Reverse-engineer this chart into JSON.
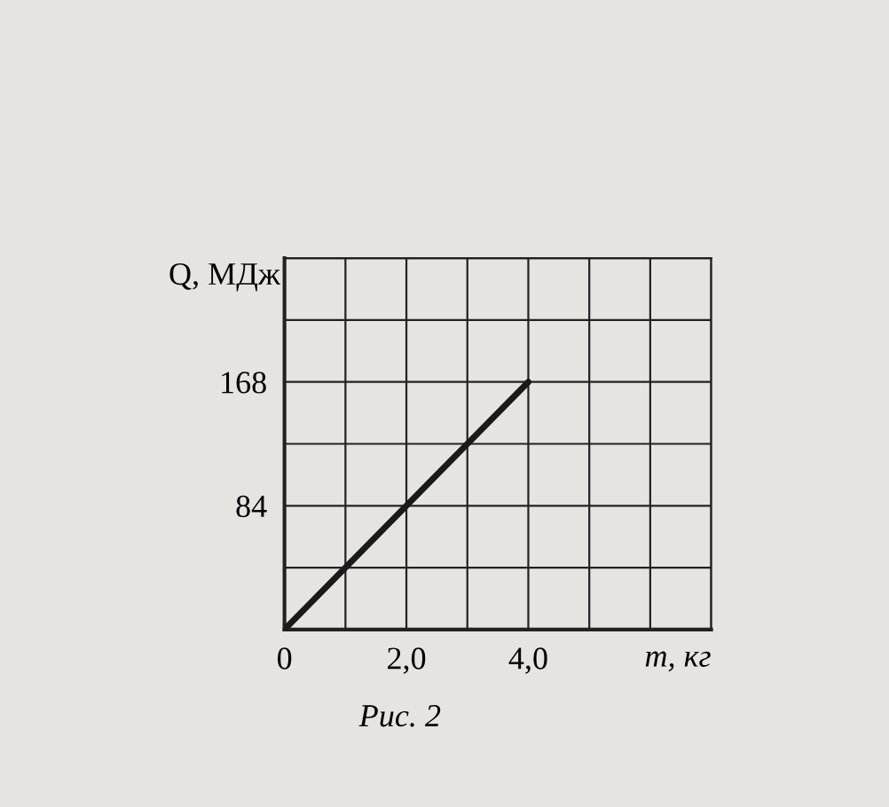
{
  "chart_data": {
    "type": "line",
    "xlabel": "m, кг",
    "ylabel": "Q, МДж",
    "annotations": [
      "Рис. 2"
    ],
    "series": [
      {
        "color": "#1a1a1a",
        "x": [
          0,
          4
        ],
        "values": [
          0,
          168
        ]
      }
    ],
    "xlim": [
      0,
      7
    ],
    "xticks": [
      {
        "value": 0,
        "label": "0"
      },
      {
        "value": 1,
        "label": null
      },
      {
        "value": 2,
        "label": "2,0"
      },
      {
        "value": 3,
        "label": null
      },
      {
        "value": 4,
        "label": "4,0"
      },
      {
        "value": 5,
        "label": null
      },
      {
        "value": 6,
        "label": null
      },
      {
        "value": 7,
        "label": null
      }
    ],
    "ylim": [
      0,
      252
    ],
    "yticks": [
      {
        "value": 42,
        "label": null
      },
      {
        "value": 84,
        "label": "84"
      },
      {
        "value": 126,
        "label": null
      },
      {
        "value": 168,
        "label": "168"
      },
      {
        "value": 210,
        "label": null
      },
      {
        "value": 252,
        "label": null
      }
    ],
    "grid": true,
    "marker": "none",
    "line_style": "solid"
  }
}
